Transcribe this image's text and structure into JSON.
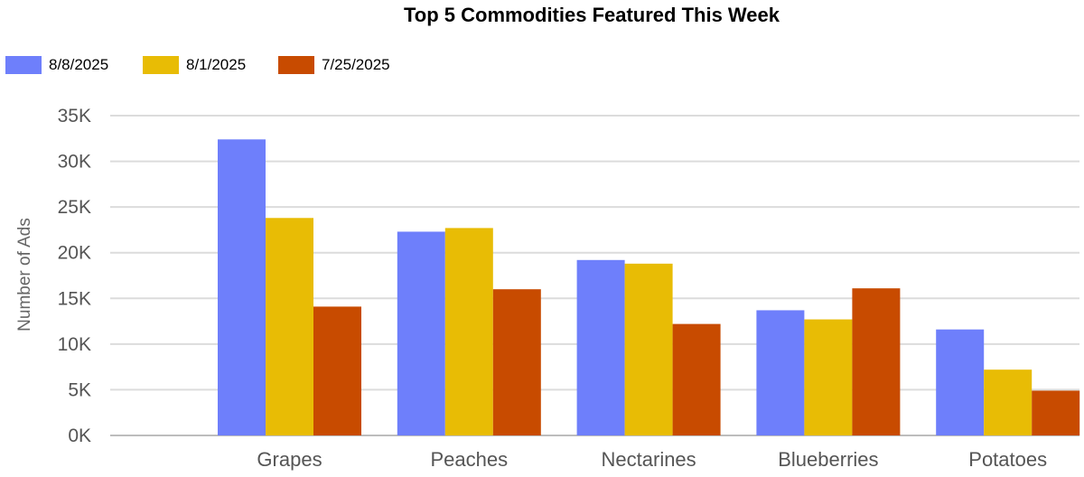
{
  "chart_data": {
    "type": "bar",
    "title": "Top 5 Commodities Featured This Week",
    "xlabel": "",
    "ylabel": "Number of Ads",
    "categories": [
      "Grapes",
      "Peaches",
      "Nectarines",
      "Blueberries",
      "Potatoes"
    ],
    "series": [
      {
        "name": "8/8/2025",
        "color": "#6e7ffb",
        "values": [
          32400,
          22300,
          19200,
          13700,
          11600
        ]
      },
      {
        "name": "8/1/2025",
        "color": "#e8bc05",
        "values": [
          23800,
          22700,
          18800,
          12700,
          7200
        ]
      },
      {
        "name": "7/25/2025",
        "color": "#c84b00",
        "values": [
          14100,
          16000,
          12200,
          16100,
          4900
        ]
      }
    ],
    "ylim": [
      0,
      35000
    ],
    "yticks": [
      0,
      5000,
      10000,
      15000,
      20000,
      25000,
      30000,
      35000
    ],
    "ytick_labels": [
      "0K",
      "5K",
      "10K",
      "15K",
      "20K",
      "25K",
      "30K",
      "35K"
    ],
    "grid": true,
    "legend_position": "top-left"
  }
}
